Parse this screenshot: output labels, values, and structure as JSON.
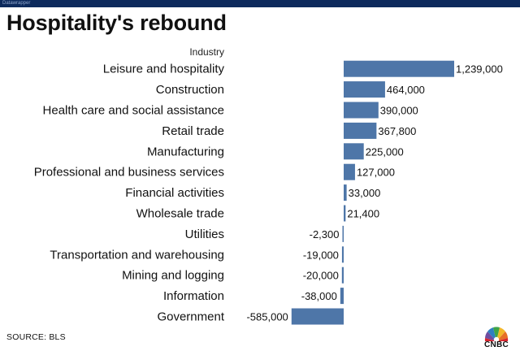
{
  "header": {
    "top_bar_text": "Datawrapper",
    "title": "Hospitality's rebound"
  },
  "footer": {
    "source": "SOURCE: BLS",
    "logo_text": "CNBC"
  },
  "colors": {
    "bar": "#4e76a8",
    "top_bar": "#0d2a5c",
    "text": "#111111"
  },
  "chart_data": {
    "type": "bar",
    "orientation": "horizontal",
    "category_header": "Industry",
    "categories": [
      "Leisure and hospitality",
      "Construction",
      "Health care and social assistance",
      "Retail trade",
      "Manufacturing",
      "Professional and business services",
      "Financial activities",
      "Wholesale trade",
      "Utilities",
      "Transportation and warehousing",
      "Mining and logging",
      "Information",
      "Government"
    ],
    "values": [
      1239000,
      464000,
      390000,
      367800,
      225000,
      127000,
      33000,
      21400,
      -2300,
      -19000,
      -20000,
      -38000,
      -585000
    ],
    "value_labels": [
      "1,239,000",
      "464,000",
      "390,000",
      "367,800",
      "225,000",
      "127,000",
      "33,000",
      "21,400",
      "-2,300",
      "-19,000",
      "-20,000",
      "-38,000",
      "-585,000"
    ],
    "xlim": [
      -585000,
      1239000
    ],
    "grid": false,
    "legend": "none"
  }
}
